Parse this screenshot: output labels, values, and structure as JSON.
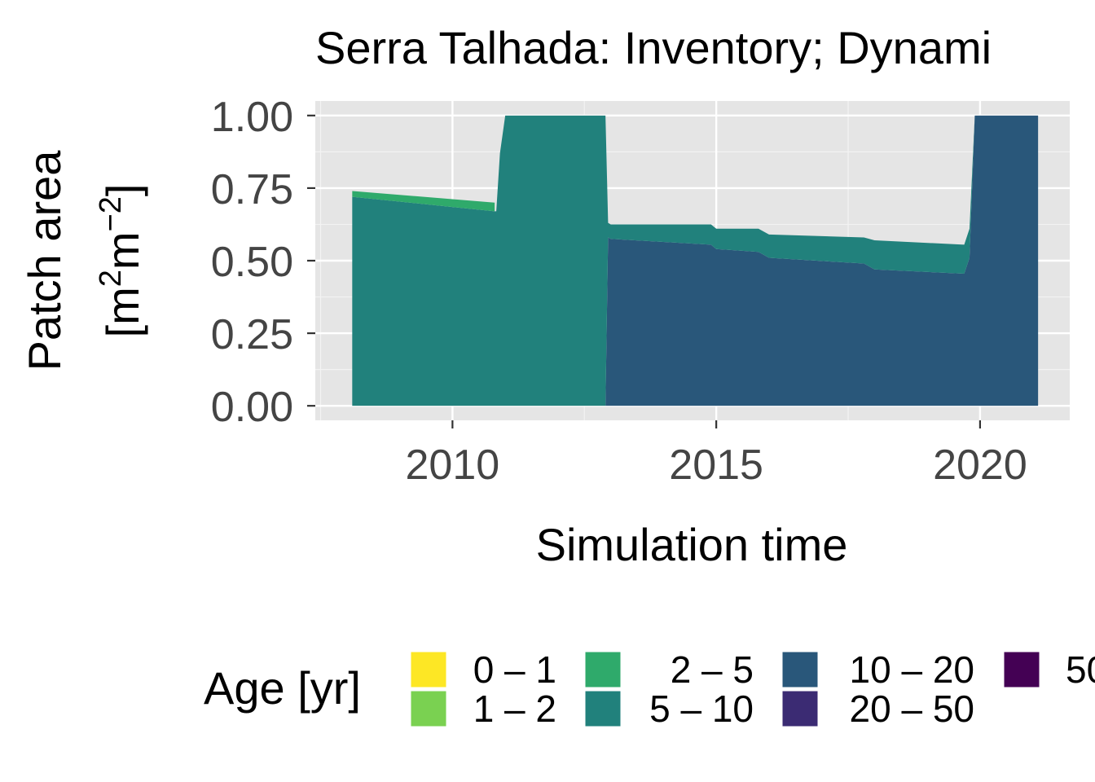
{
  "chart_data": {
    "type": "area",
    "title": "Serra Talhada: Inventory; Dynami",
    "xlabel": "Simulation time",
    "ylabel_line1": "Patch area",
    "ylabel_unit": {
      "open": "[m",
      "sup1": "2",
      "mid": "m",
      "sup2": "−2",
      "close": "]"
    },
    "xlim": [
      2007.4,
      2021.7
    ],
    "ylim": [
      -0.05,
      1.05
    ],
    "x_ticks": [
      2010,
      2015,
      2020
    ],
    "x_tick_labels": [
      "2010",
      "2015",
      "2020"
    ],
    "y_ticks": [
      0,
      0.25,
      0.5,
      0.75,
      1.0
    ],
    "y_tick_labels": [
      "0.00",
      "0.25",
      "0.50",
      "0.75",
      "1.00"
    ],
    "grid": true,
    "legend": {
      "title": "Age [yr]",
      "position": "bottom",
      "items": [
        {
          "label": "0 – 1",
          "color": "#FDE725"
        },
        {
          "label": "1 – 2",
          "color": "#7AD151"
        },
        {
          "label": "2 – 5",
          "color": "#2FAA6B"
        },
        {
          "label": "5 – 10",
          "color": "#21817C"
        },
        {
          "label": "10 – 20",
          "color": "#29577A"
        },
        {
          "label": "20 – 50",
          "color": "#3B2B73"
        },
        {
          "label": "50",
          "color": "#440154"
        }
      ]
    },
    "series": [
      {
        "name": "2 – 5",
        "color": "#2FAA6B",
        "x": [
          2008.1,
          2010.8
        ],
        "y": [
          0.02,
          0.03
        ]
      },
      {
        "name": "5 – 10",
        "color": "#21817C",
        "x": [
          2008.1,
          2010.8,
          2010.83,
          2010.9,
          2011.0,
          2012.9,
          2012.95,
          2013.0,
          2014.9,
          2015.0,
          2015.8,
          2016.0,
          2017.8,
          2018.0,
          2019.7,
          2019.8,
          2019.9
        ],
        "y": [
          0.72,
          0.67,
          0.67,
          0.87,
          1.0,
          1.0,
          0.05,
          0.05,
          0.07,
          0.07,
          0.08,
          0.08,
          0.09,
          0.1,
          0.1,
          0.1,
          0.0
        ]
      },
      {
        "name": "10 – 20",
        "color": "#29577A",
        "x": [
          2008.1,
          2012.9,
          2012.95,
          2013.0,
          2014.9,
          2015.0,
          2015.8,
          2016.0,
          2017.8,
          2018.0,
          2019.7,
          2019.8,
          2019.9,
          2021.0,
          2021.1
        ],
        "y": [
          0,
          0,
          0.58,
          0.575,
          0.555,
          0.54,
          0.53,
          0.51,
          0.49,
          0.47,
          0.455,
          0.51,
          1.0,
          1.0,
          1.0
        ]
      }
    ]
  }
}
